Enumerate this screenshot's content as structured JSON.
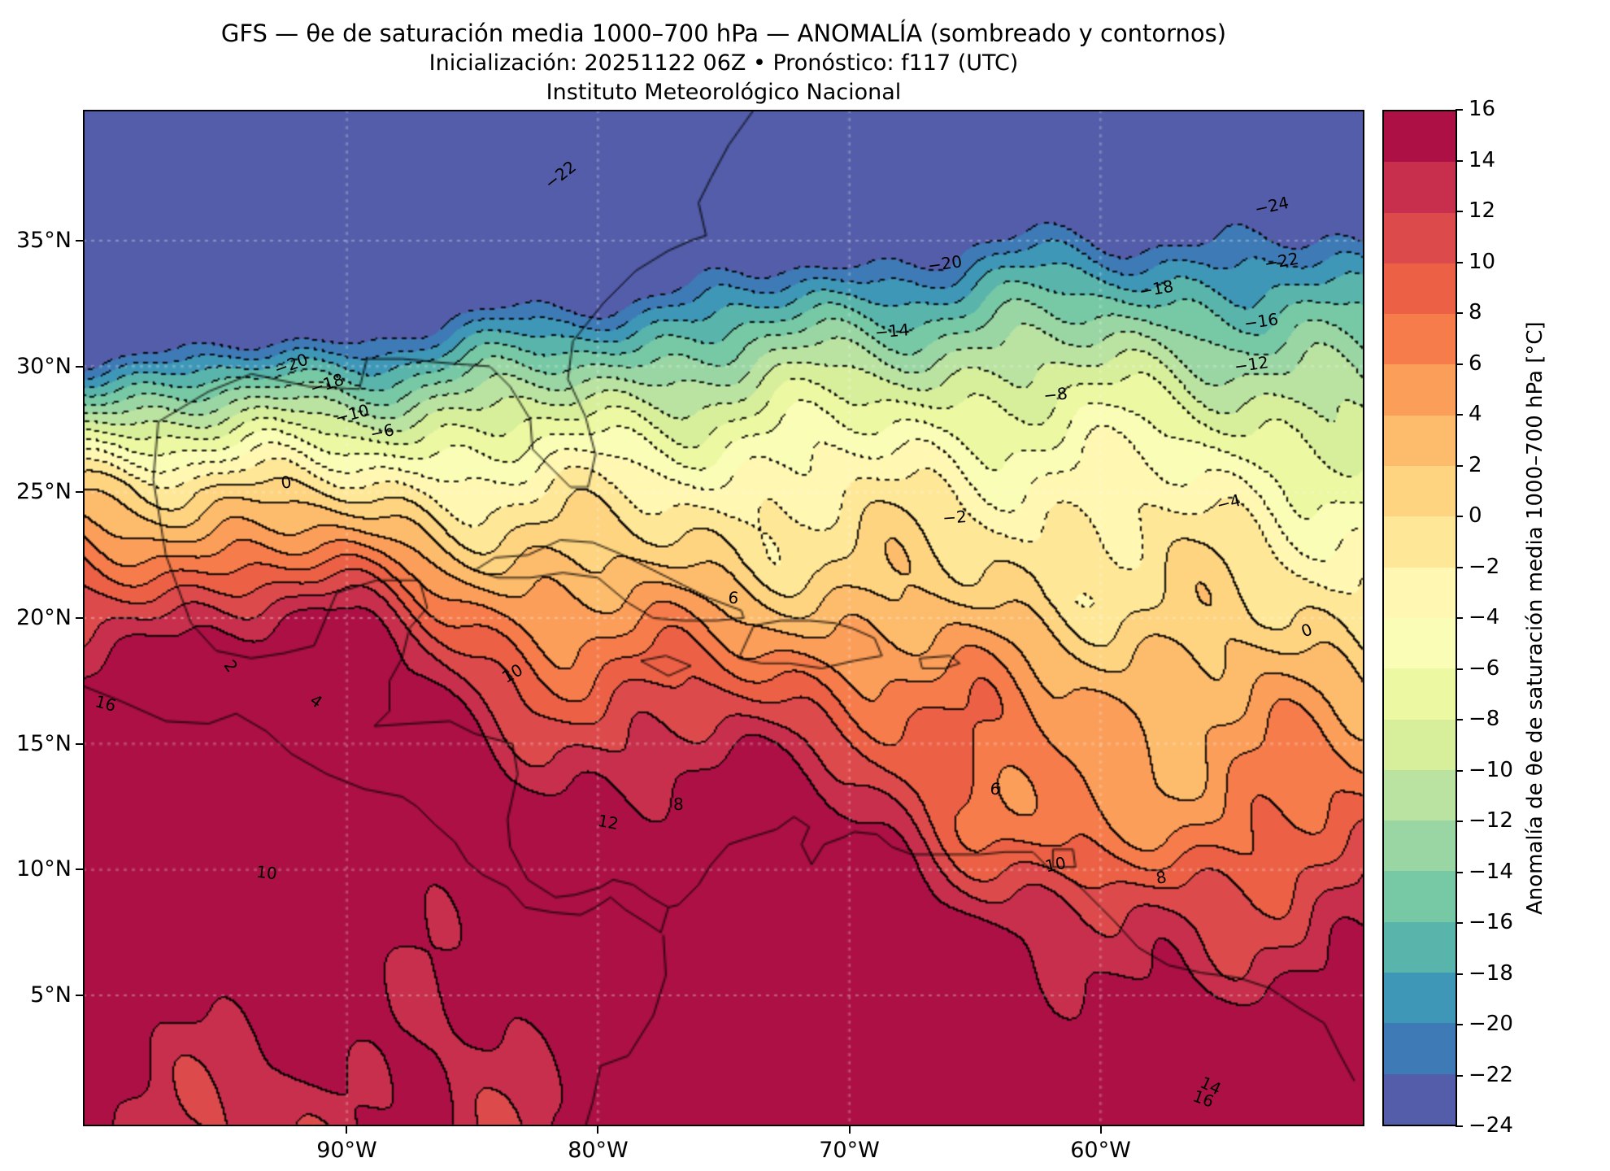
{
  "title": {
    "line1": "GFS — θe de saturación media 1000–700 hPa — ANOMALÍA (sombreado y contornos)",
    "line2": "Inicialización: 20251122 06Z   •   Pronóstico: f117 (UTC)",
    "line3": "Instituto Meteorológico Nacional"
  },
  "axes": {
    "x_ticks": [
      {
        "label": "90°W",
        "lon": -90
      },
      {
        "label": "80°W",
        "lon": -80
      },
      {
        "label": "70°W",
        "lon": -70
      },
      {
        "label": "60°W",
        "lon": -60
      }
    ],
    "y_ticks": [
      {
        "label": "35°N",
        "lat": 35
      },
      {
        "label": "30°N",
        "lat": 30
      },
      {
        "label": "25°N",
        "lat": 25
      },
      {
        "label": "20°N",
        "lat": 20
      },
      {
        "label": "15°N",
        "lat": 15
      },
      {
        "label": "10°N",
        "lat": 10
      },
      {
        "label": "5°N",
        "lat": 5
      }
    ]
  },
  "colorbar": {
    "label": "Anomalía de θe de saturación media 1000–700 hPa [°C]",
    "ticks": [
      "16",
      "14",
      "12",
      "10",
      "8",
      "6",
      "4",
      "2",
      "0",
      "−2",
      "−4",
      "−6",
      "−8",
      "−10",
      "−12",
      "−14",
      "−16",
      "−18",
      "−20",
      "−22",
      "−24"
    ],
    "tick_values": [
      16,
      14,
      12,
      10,
      8,
      6,
      4,
      2,
      0,
      -2,
      -4,
      -6,
      -8,
      -10,
      -12,
      -14,
      -16,
      -18,
      -20,
      -22,
      -24
    ],
    "palette": [
      "#5e4fa2",
      "#3288bd",
      "#66c2a5",
      "#abdda4",
      "#e6f598",
      "#ffffbf",
      "#fee08b",
      "#fdae61",
      "#f46d43",
      "#d53e4f",
      "#9e0142"
    ],
    "line_color": "#000000",
    "grid_color": "#ffffff"
  },
  "chart_data": {
    "type": "heatmap",
    "title": "GFS — θe de saturación media 1000–700 hPa — ANOMALÍA (sombreado y contornos)",
    "subtitle": "Inicialización: 20251122 06Z • Pronóstico: f117 (UTC) — Instituto Meteorológico Nacional",
    "units": "°C",
    "levels": [
      -24,
      -22,
      -20,
      -18,
      -16,
      -14,
      -12,
      -10,
      -8,
      -6,
      -4,
      -2,
      0,
      2,
      4,
      6,
      8,
      10,
      12,
      14,
      16
    ],
    "line_style": {
      "negative_contours": "dotted",
      "positive_contours": "solid"
    },
    "lon_range": [
      -100.5,
      -49.5
    ],
    "lat_range": [
      -0.2,
      40.2
    ],
    "grid_lons": [
      -100,
      -95,
      -90,
      -85,
      -80,
      -75,
      -70,
      -65,
      -60,
      -55,
      -50
    ],
    "grid_lats": [
      40,
      35,
      30,
      25,
      20,
      15,
      10,
      5,
      0
    ],
    "values": [
      [
        -26,
        -26,
        -26,
        -26,
        -26,
        -25,
        -24,
        -23,
        -23,
        -24,
        -25
      ],
      [
        -26,
        -26,
        -25,
        -24,
        -22,
        -18,
        -16,
        -15,
        -16,
        -19,
        -21
      ],
      [
        -20,
        -19,
        -17,
        -13,
        -10,
        -9,
        -9,
        -10,
        -11,
        -12,
        -13
      ],
      [
        2,
        1,
        0,
        -1,
        -1,
        -2,
        -2,
        -3,
        -4,
        -4,
        -5
      ],
      [
        8,
        9,
        10,
        7,
        5,
        6,
        4,
        3,
        2,
        1,
        0
      ],
      [
        16,
        14,
        12,
        8,
        9,
        11,
        8,
        6,
        4,
        5,
        6
      ],
      [
        14,
        16,
        12,
        9,
        10,
        12,
        12,
        6,
        8,
        9,
        10
      ],
      [
        12,
        14,
        13,
        11,
        10,
        14,
        14,
        10,
        6,
        10,
        12
      ],
      [
        12,
        13,
        12,
        11,
        12,
        16,
        16,
        14,
        12,
        14,
        16
      ]
    ],
    "features": [
      {
        "type": "max",
        "lon": -96,
        "lat": 12,
        "amp": 8,
        "slon": 7,
        "slat": 6
      },
      {
        "type": "max",
        "lon": -91.5,
        "lat": 19,
        "amp": 6,
        "slon": 3.5,
        "slat": 2.5
      },
      {
        "type": "max",
        "lon": -73.5,
        "lat": 7.5,
        "amp": 9,
        "slon": 7,
        "slat": 6
      },
      {
        "type": "max",
        "lon": -54,
        "lat": 2,
        "amp": 7,
        "slon": 8,
        "slat": 5
      },
      {
        "type": "min",
        "lon": -61.5,
        "lat": 11.8,
        "amp": -6,
        "slon": 4.5,
        "slat": 2.4
      },
      {
        "type": "min",
        "lon": -57,
        "lat": 5.5,
        "amp": -4,
        "slon": 3,
        "slat": 2
      }
    ],
    "contour_labels": [
      {
        "t": "−22",
        "lon": -81.5,
        "lat": 37.6,
        "rot": -38
      },
      {
        "t": "−24",
        "lon": -53.2,
        "lat": 36.4,
        "rot": -12
      },
      {
        "t": "−22",
        "lon": -52.8,
        "lat": 34.2,
        "rot": -10
      },
      {
        "t": "−20",
        "lon": -66.2,
        "lat": 34.1,
        "rot": -8
      },
      {
        "t": "−18",
        "lon": -57.8,
        "lat": 33.1,
        "rot": -10
      },
      {
        "t": "−16",
        "lon": -53.6,
        "lat": 31.8,
        "rot": -8
      },
      {
        "t": "−14",
        "lon": -68.3,
        "lat": 31.4,
        "rot": -5
      },
      {
        "t": "−12",
        "lon": -54.0,
        "lat": 30.1,
        "rot": -8
      },
      {
        "t": "−20",
        "lon": -92.2,
        "lat": 30.1,
        "rot": -20
      },
      {
        "t": "−18",
        "lon": -90.8,
        "lat": 29.3,
        "rot": -18
      },
      {
        "t": "−10",
        "lon": -89.8,
        "lat": 28.1,
        "rot": -15
      },
      {
        "t": "−8",
        "lon": -61.8,
        "lat": 28.9,
        "rot": -6
      },
      {
        "t": "−6",
        "lon": -88.6,
        "lat": 27.4,
        "rot": -12
      },
      {
        "t": "−4",
        "lon": -54.9,
        "lat": 24.6,
        "rot": -14
      },
      {
        "t": "−2",
        "lon": -65.8,
        "lat": 24.0,
        "rot": -4
      },
      {
        "t": "0",
        "lon": -92.4,
        "lat": 25.4,
        "rot": -8
      },
      {
        "t": "0",
        "lon": -51.8,
        "lat": 19.5,
        "rot": -20
      },
      {
        "t": "2",
        "lon": -94.6,
        "lat": 18.1,
        "rot": 55
      },
      {
        "t": "4",
        "lon": -91.2,
        "lat": 16.7,
        "rot": 35
      },
      {
        "t": "6",
        "lon": -74.6,
        "lat": 20.8,
        "rot": 5
      },
      {
        "t": "6",
        "lon": -64.2,
        "lat": 13.2,
        "rot": 8
      },
      {
        "t": "8",
        "lon": -76.8,
        "lat": 12.6,
        "rot": 0
      },
      {
        "t": "8",
        "lon": -57.6,
        "lat": 9.7,
        "rot": -10
      },
      {
        "t": "10",
        "lon": -93.2,
        "lat": 9.9,
        "rot": 6
      },
      {
        "t": "10",
        "lon": -61.8,
        "lat": 10.2,
        "rot": -12
      },
      {
        "t": "10",
        "lon": -83.4,
        "lat": 17.8,
        "rot": -30
      },
      {
        "t": "12",
        "lon": -79.6,
        "lat": 11.9,
        "rot": 10
      },
      {
        "t": "14",
        "lon": -55.6,
        "lat": 1.4,
        "rot": 25
      },
      {
        "t": "16",
        "lon": -99.6,
        "lat": 16.6,
        "rot": 15
      },
      {
        "t": "16",
        "lon": -55.9,
        "lat": 0.9,
        "rot": 20
      }
    ]
  }
}
